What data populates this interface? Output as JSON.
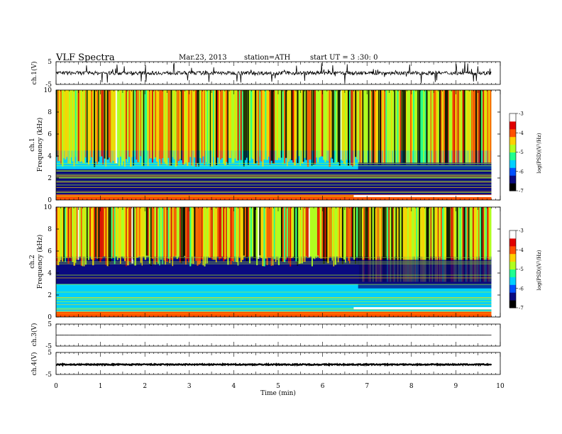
{
  "header": {
    "title": "VLF Spectra",
    "date": "Mar.23, 2013",
    "station": "station=ATH",
    "start": "start UT = 3 :30: 0"
  },
  "chart_data": [
    {
      "id": "ch1-waveform",
      "type": "line",
      "ylabel": "ch.1(V)",
      "ylim": [
        -5,
        5
      ],
      "yticks": [
        "5",
        "-5"
      ],
      "xlim": [
        0,
        10
      ],
      "samples_cover_min": [
        0,
        9.8
      ],
      "baseline": 0.0,
      "noise_amplitude": 0.8,
      "impulsive_spikes": true
    },
    {
      "id": "ch1-spectrogram",
      "type": "heatmap",
      "ylabel": "Frequency (kHz)",
      "channel_label": "ch.1",
      "ylim": [
        0,
        10
      ],
      "yticks": [
        "0",
        "2",
        "4",
        "6",
        "8",
        "10"
      ],
      "xlim": [
        0,
        10
      ],
      "data_cover_min": [
        0,
        9.8
      ],
      "colorbar": {
        "label": "log(PSD)(V²/Hz)",
        "range": [
          -7,
          -3
        ],
        "ticks": [
          "-3",
          "-4",
          "-5",
          "-6",
          "-7"
        ],
        "colormap": [
          "#000000",
          "#0a0a80",
          "#0050ff",
          "#00d0ff",
          "#20ff90",
          "#b0ff20",
          "#ffd000",
          "#ff5000",
          "#e00000",
          "#ffffff"
        ]
      },
      "background_levels": [
        [
          0,
          0.5,
          -4.0
        ],
        [
          0.5,
          2.8,
          -6.3
        ],
        [
          2.8,
          4.5,
          -5.8
        ],
        [
          4.5,
          10,
          -5.0
        ]
      ],
      "late_quiet_after_min": 6.8,
      "red_band_khz": 0.35,
      "red_band_after_min": 6.7
    },
    {
      "id": "ch2-spectrogram",
      "type": "heatmap",
      "ylabel": "Frequency (kHz)",
      "channel_label": "ch.2",
      "ylim": [
        0,
        10
      ],
      "yticks": [
        "0",
        "2",
        "4",
        "6",
        "8",
        "10"
      ],
      "xlim": [
        0,
        10
      ],
      "data_cover_min": [
        0,
        9.8
      ],
      "colorbar": {
        "label": "log(PSD)(V²/Hz)",
        "range": [
          -7,
          -3
        ],
        "ticks": [
          "-3",
          "-4",
          "-5",
          "-6",
          "-7"
        ],
        "colormap": [
          "#000000",
          "#0a0a80",
          "#0050ff",
          "#00d0ff",
          "#20ff90",
          "#b0ff20",
          "#ffd000",
          "#ff5000",
          "#e00000",
          "#ffffff"
        ]
      },
      "background_levels": [
        [
          0,
          0.5,
          -4.2
        ],
        [
          0.5,
          3.0,
          -5.6
        ],
        [
          3.0,
          5.5,
          -6.2
        ],
        [
          5.5,
          10,
          -5.0
        ]
      ],
      "late_quiet_after_min": 6.8,
      "red_band_khz": 0.8,
      "red_band_after_min": 6.7
    },
    {
      "id": "ch3-waveform",
      "type": "line",
      "ylabel": "ch.3(V)",
      "ylim": [
        -5,
        5
      ],
      "yticks": [
        "5",
        "-5"
      ],
      "xlim": [
        0,
        10
      ],
      "samples_cover_min": [
        0,
        9.8
      ],
      "baseline": 0.0,
      "noise_amplitude": 0.05
    },
    {
      "id": "ch4-waveform",
      "type": "line",
      "ylabel": "ch.4(V)",
      "ylim": [
        -5,
        5
      ],
      "yticks": [
        "5",
        "-5"
      ],
      "xlim": [
        0,
        10
      ],
      "samples_cover_min": [
        0,
        9.8
      ],
      "baseline": -0.5,
      "noise_amplitude": 0.25,
      "thick_trace": true
    }
  ],
  "xaxis": {
    "label": "Time (min)",
    "ticks": [
      "0",
      "1",
      "2",
      "3",
      "4",
      "5",
      "6",
      "7",
      "8",
      "9",
      "10"
    ]
  }
}
